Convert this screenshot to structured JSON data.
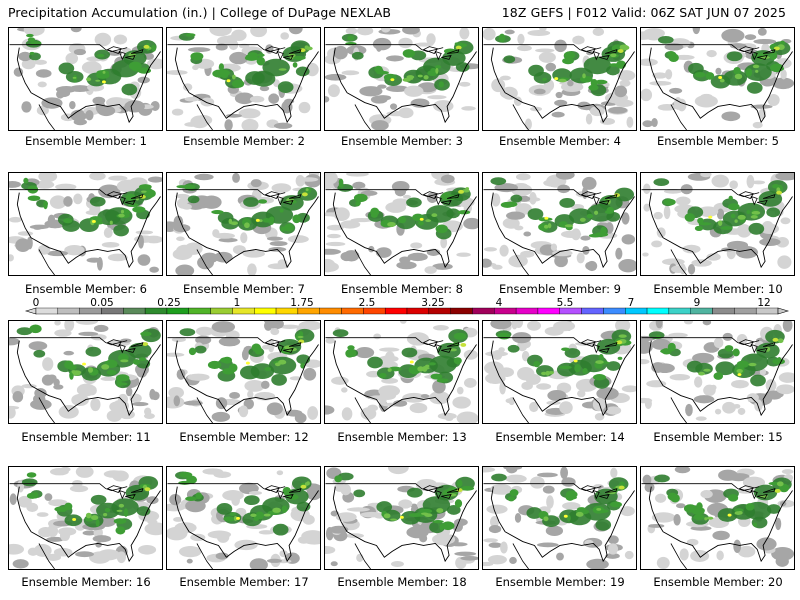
{
  "header": {
    "title": "Precipitation Accumulation (in.) | College of DuPage NEXLAB",
    "run_info": "18Z GEFS | F012 Valid: 06Z SAT JUN 07 2025"
  },
  "panels": [
    {
      "label": "Ensemble Member: 1"
    },
    {
      "label": "Ensemble Member: 2"
    },
    {
      "label": "Ensemble Member: 3"
    },
    {
      "label": "Ensemble Member: 4"
    },
    {
      "label": "Ensemble Member: 5"
    },
    {
      "label": "Ensemble Member: 6"
    },
    {
      "label": "Ensemble Member: 7"
    },
    {
      "label": "Ensemble Member: 8"
    },
    {
      "label": "Ensemble Member: 9"
    },
    {
      "label": "Ensemble Member: 10"
    },
    {
      "label": "Ensemble Member: 11"
    },
    {
      "label": "Ensemble Member: 12"
    },
    {
      "label": "Ensemble Member: 13"
    },
    {
      "label": "Ensemble Member: 14"
    },
    {
      "label": "Ensemble Member: 15"
    },
    {
      "label": "Ensemble Member: 16"
    },
    {
      "label": "Ensemble Member: 17"
    },
    {
      "label": "Ensemble Member: 18"
    },
    {
      "label": "Ensemble Member: 19"
    },
    {
      "label": "Ensemble Member: 20"
    }
  ],
  "colorbar": {
    "tick_labels": [
      "0",
      "0.05",
      "0.25",
      "1",
      "1.75",
      "2.5",
      "3.25",
      "4",
      "5.5",
      "7",
      "9",
      "12"
    ],
    "colors": [
      "#dcdcdc",
      "#bebebe",
      "#9b9b9b",
      "#787878",
      "#5a8a5a",
      "#2e8b2e",
      "#1e9f1e",
      "#50b428",
      "#9acd32",
      "#e6e628",
      "#ffff00",
      "#ffd700",
      "#ffa500",
      "#ff8c00",
      "#ff6a00",
      "#ff4500",
      "#ff0000",
      "#dc0000",
      "#b40000",
      "#8b0000",
      "#a0005a",
      "#c8008c",
      "#e600c8",
      "#ff00ff",
      "#b450ff",
      "#6464ff",
      "#3c8cff",
      "#00c8ff",
      "#00ffff",
      "#3cd2c8",
      "#50b4a0",
      "#8c8c8c",
      "#a0a0a0",
      "#c8c8c8"
    ],
    "colors_note_unused": ""
  },
  "legend_colors": {
    "light_gray": "#d4d4d4",
    "mid_gray": "#a6a6a6",
    "dark_gray": "#7a7a7a",
    "green_dark": "#2f7d2f",
    "green": "#3e9d35",
    "green_light": "#72c04a",
    "yellow_green": "#c6e23a",
    "yellow": "#ffff33"
  }
}
